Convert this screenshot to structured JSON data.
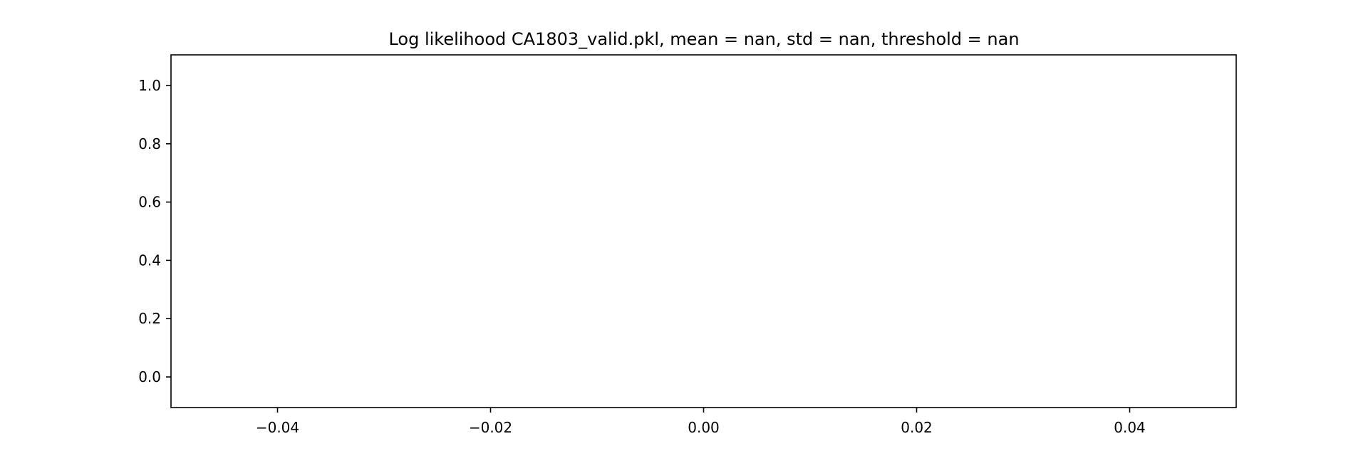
{
  "chart_data": {
    "type": "line",
    "title": "Log likelihood CA1803_valid.pkl, mean = nan, std = nan, threshold = nan",
    "xlabel": "",
    "ylabel": "",
    "xlim": [
      -0.05,
      0.05
    ],
    "ylim": [
      -0.105,
      1.105
    ],
    "x_ticks": [
      {
        "value": -0.04,
        "label": "−0.04"
      },
      {
        "value": -0.02,
        "label": "−0.02"
      },
      {
        "value": 0.0,
        "label": "0.00"
      },
      {
        "value": 0.02,
        "label": "0.02"
      },
      {
        "value": 0.04,
        "label": "0.04"
      }
    ],
    "y_ticks": [
      {
        "value": 0.0,
        "label": "0.0"
      },
      {
        "value": 0.2,
        "label": "0.2"
      },
      {
        "value": 0.4,
        "label": "0.4"
      },
      {
        "value": 0.6,
        "label": "0.6"
      },
      {
        "value": 0.8,
        "label": "0.8"
      },
      {
        "value": 1.0,
        "label": "1.0"
      }
    ],
    "series": [],
    "grid": false,
    "legend": "none"
  }
}
